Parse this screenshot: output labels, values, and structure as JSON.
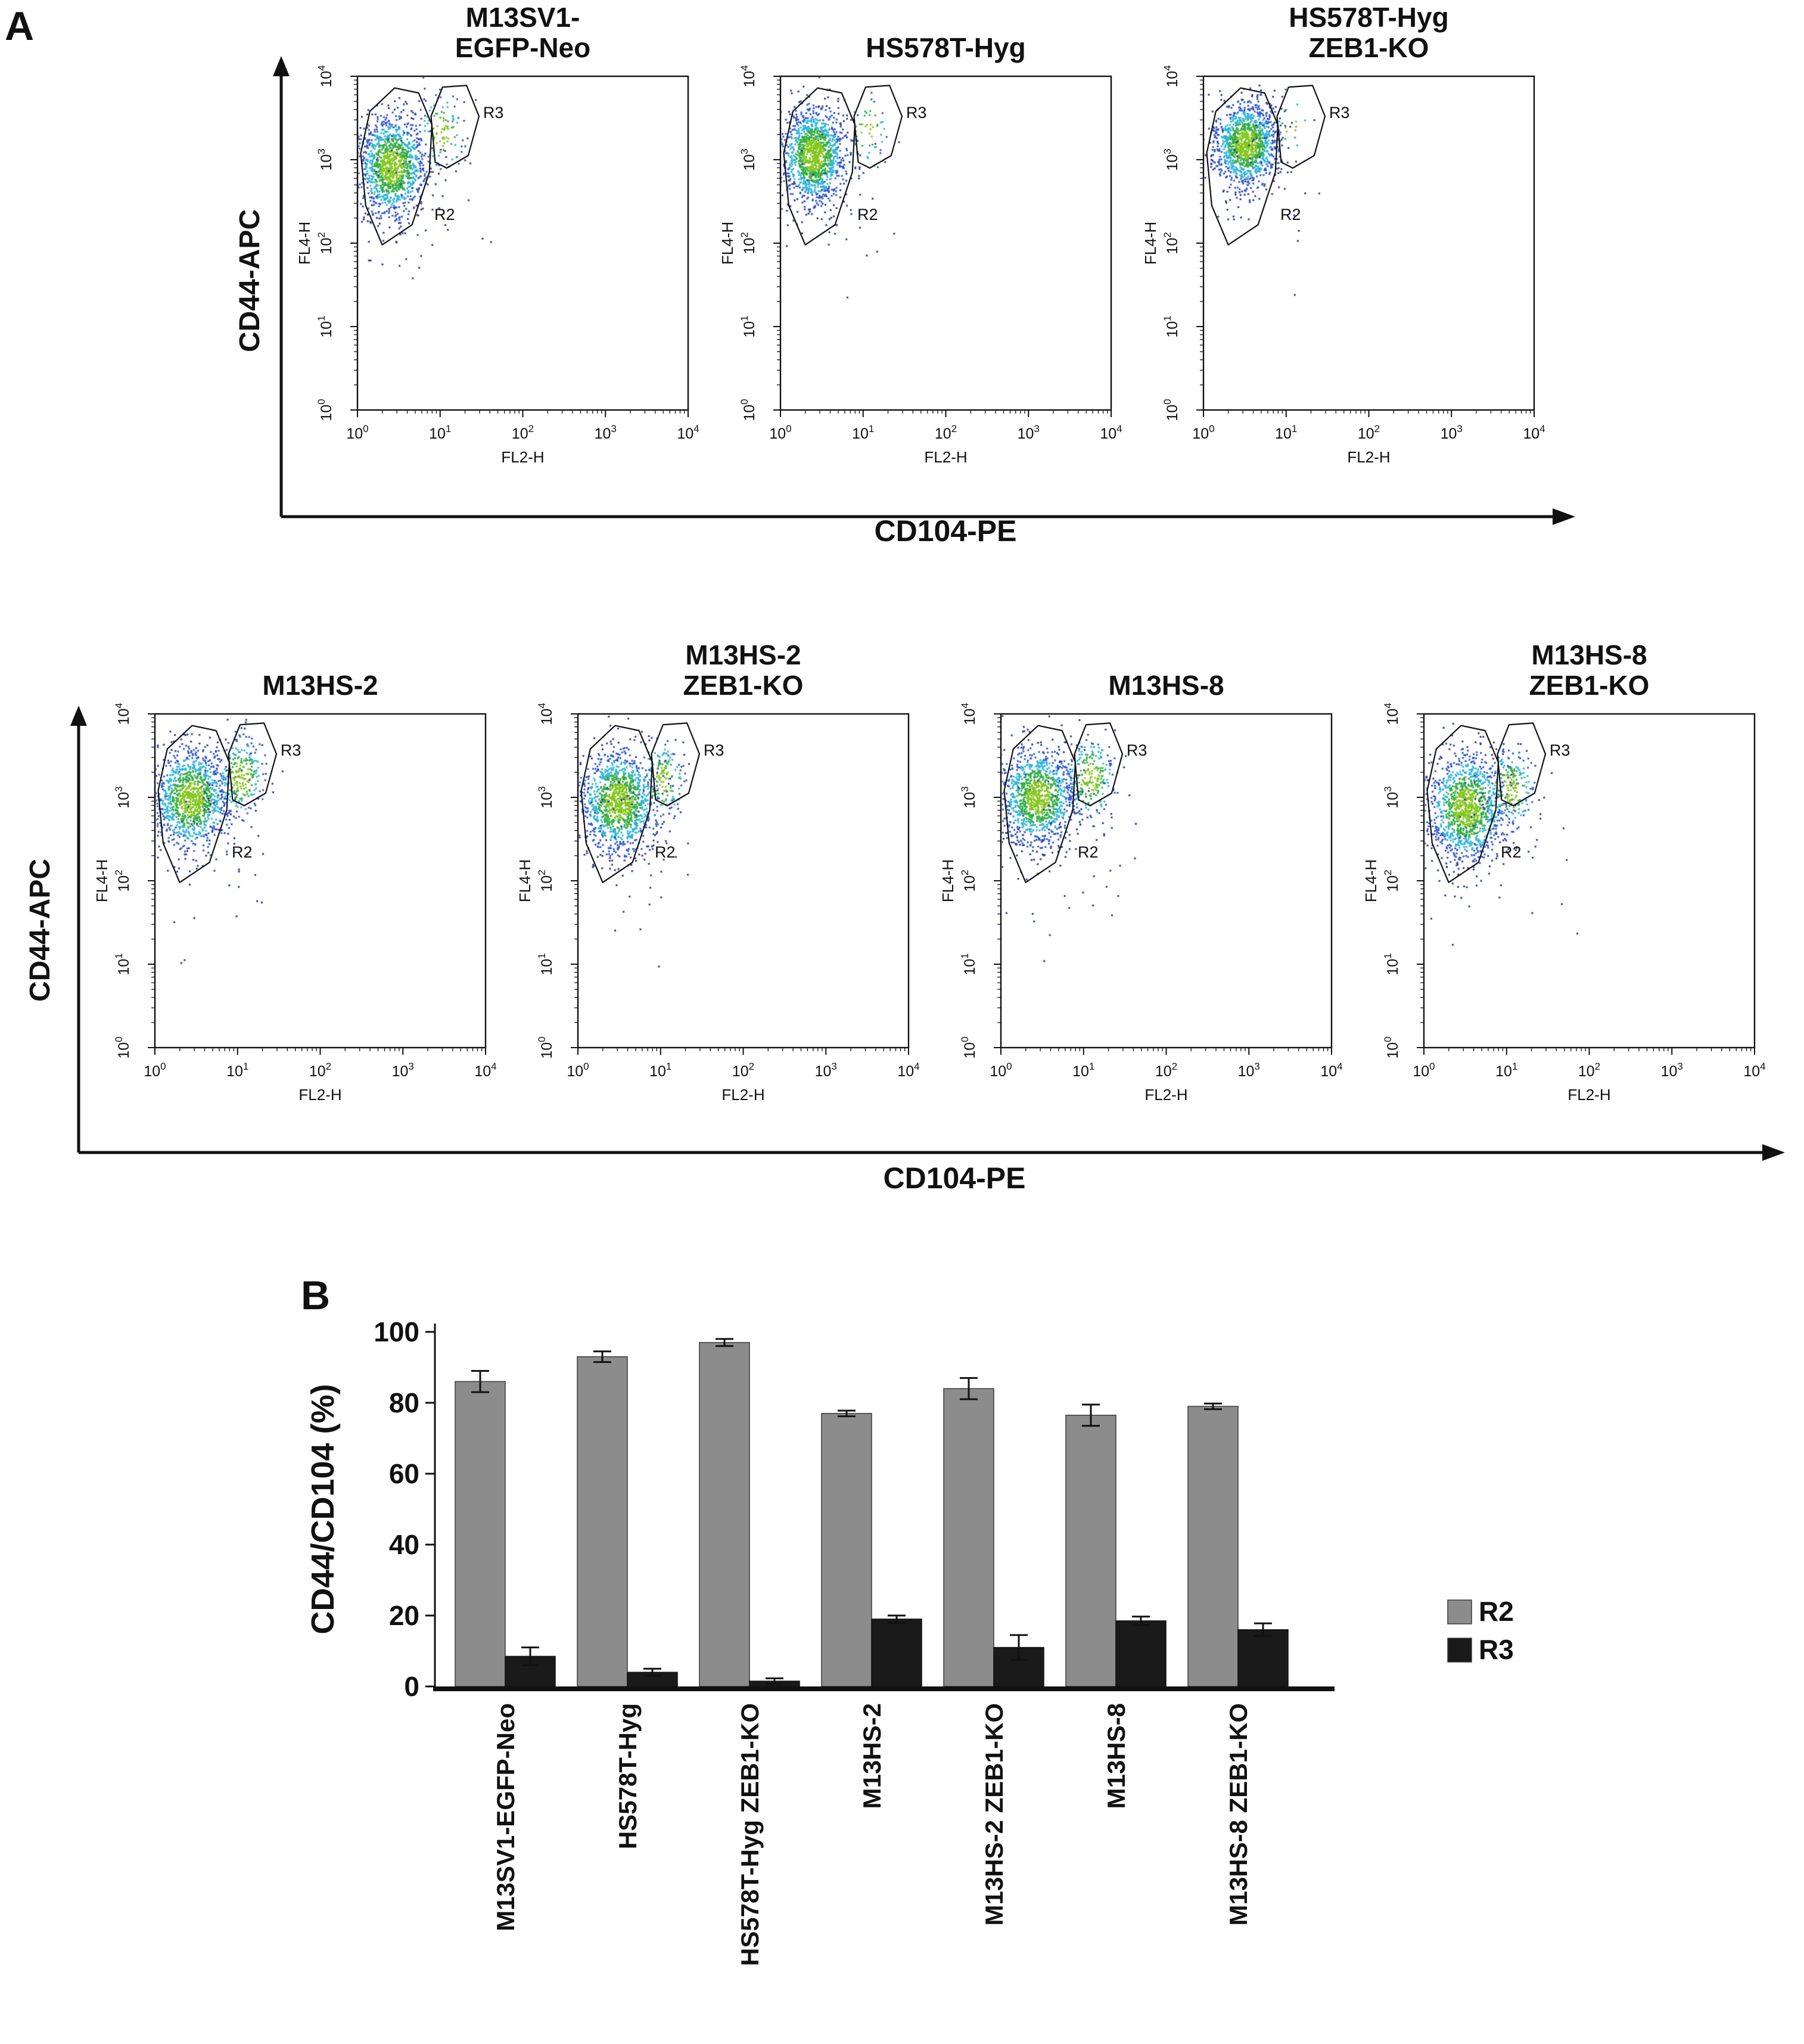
{
  "page": {
    "background": "#ffffff"
  },
  "panel_a": {
    "label": "A",
    "axis_x_label": "CD104-PE",
    "axis_y_label": "CD44-APC",
    "rows": [
      {
        "plots": [
          {
            "title": "M13SV1-\nEGFP-Neo"
          },
          {
            "title": "HS578T-Hyg"
          },
          {
            "title": "HS578T-Hyg\nZEB1-KO"
          }
        ]
      },
      {
        "plots": [
          {
            "title": "M13HS-2"
          },
          {
            "title": "M13HS-2\nZEB1-KO"
          },
          {
            "title": "M13HS-8"
          },
          {
            "title": "M13HS-8\nZEB1-KO"
          }
        ]
      }
    ]
  },
  "panel_b": {
    "label": "B"
  },
  "chart_data": [
    {
      "type": "bar",
      "title": "",
      "xlabel": "",
      "ylabel": "CD44/CD104 (%)",
      "ylim": [
        0,
        100
      ],
      "yticks": [
        0,
        20,
        40,
        60,
        80,
        100
      ],
      "grid": false,
      "legend_position": "right",
      "categories": [
        "M13SV1-EGFP-Neo",
        "HS578T-Hyg",
        "HS578T-Hyg ZEB1-KO",
        "M13HS-2",
        "M13HS-2 ZEB1-KO",
        "M13HS-8",
        "M13HS-8 ZEB1-KO"
      ],
      "series": [
        {
          "name": "R2",
          "color": "#8c8c8c",
          "values": [
            86,
            93,
            97,
            77,
            84,
            76.5,
            79
          ],
          "errors": [
            3,
            1.5,
            1,
            0.8,
            3,
            3,
            0.8
          ]
        },
        {
          "name": "R3",
          "color": "#1a1a1a",
          "values": [
            8.5,
            4,
            1.5,
            19,
            11,
            18.5,
            16
          ],
          "errors": [
            2.5,
            1,
            0.8,
            1,
            3.5,
            1.2,
            1.8
          ]
        }
      ]
    },
    {
      "type": "flow_density_scatter",
      "x_axis": {
        "label": "FL2-H",
        "scale": "log10",
        "range_decades": [
          0,
          4
        ]
      },
      "y_axis": {
        "label": "FL4-H",
        "scale": "log10",
        "range_decades": [
          0,
          4
        ]
      },
      "decade_tick_labels": [
        "10^0",
        "10^1",
        "10^2",
        "10^3",
        "10^4"
      ],
      "density_palette": {
        "outlier": "#2b3a9c",
        "low": "#3056c9",
        "mid": "#2fb4d8",
        "high": "#35ad47",
        "core": "#84c61e"
      },
      "gate_labels": [
        "R2",
        "R3"
      ],
      "gates": {
        "R2": [
          [
            0.3,
            1.98
          ],
          [
            0.1,
            2.45
          ],
          [
            0.04,
            3.08
          ],
          [
            0.15,
            3.58
          ],
          [
            0.45,
            3.86
          ],
          [
            0.74,
            3.8
          ],
          [
            0.9,
            3.42
          ],
          [
            0.87,
            2.85
          ],
          [
            0.66,
            2.22
          ]
        ],
        "R3": [
          [
            0.94,
            2.97
          ],
          [
            0.89,
            3.52
          ],
          [
            1.03,
            3.87
          ],
          [
            1.32,
            3.89
          ],
          [
            1.47,
            3.52
          ],
          [
            1.34,
            3.05
          ],
          [
            1.08,
            2.9
          ]
        ],
        "R2_label_pos": [
          0.93,
          2.28
        ],
        "R3_label_pos": [
          1.52,
          3.5
        ]
      },
      "plots": [
        {
          "sample": "M13SV1-EGFP-Neo",
          "seed": 101,
          "r2_pct": 86,
          "r3_pct": 8.5,
          "populations": [
            {
              "kind": "main",
              "cx": 0.42,
              "cy": 2.92,
              "sx": 0.2,
              "sy": 0.3,
              "n": 1250
            },
            {
              "kind": "r3",
              "cx": 1.02,
              "cy": 3.32,
              "sx": 0.14,
              "sy": 0.24,
              "n": 110
            },
            {
              "kind": "scatter",
              "cx": 0.55,
              "cy": 2.65,
              "sx": 0.45,
              "sy": 0.6,
              "n": 70
            }
          ]
        },
        {
          "sample": "HS578T-Hyg",
          "seed": 102,
          "r2_pct": 93,
          "r3_pct": 4,
          "populations": [
            {
              "kind": "main",
              "cx": 0.4,
              "cy": 3.05,
              "sx": 0.19,
              "sy": 0.28,
              "n": 1300
            },
            {
              "kind": "r3",
              "cx": 1.05,
              "cy": 3.35,
              "sx": 0.13,
              "sy": 0.22,
              "n": 55
            },
            {
              "kind": "scatter",
              "cx": 0.5,
              "cy": 2.75,
              "sx": 0.42,
              "sy": 0.55,
              "n": 60
            }
          ]
        },
        {
          "sample": "HS578T-Hyg ZEB1-KO",
          "seed": 103,
          "r2_pct": 97,
          "r3_pct": 1.5,
          "populations": [
            {
              "kind": "main",
              "cx": 0.52,
              "cy": 3.18,
              "sx": 0.19,
              "sy": 0.25,
              "n": 1300
            },
            {
              "kind": "r3",
              "cx": 1.06,
              "cy": 3.42,
              "sx": 0.12,
              "sy": 0.2,
              "n": 18
            },
            {
              "kind": "scatter",
              "cx": 0.6,
              "cy": 2.85,
              "sx": 0.4,
              "sy": 0.5,
              "n": 50
            }
          ]
        },
        {
          "sample": "M13HS-2",
          "seed": 104,
          "r2_pct": 77,
          "r3_pct": 19,
          "populations": [
            {
              "kind": "main",
              "cx": 0.44,
              "cy": 2.98,
              "sx": 0.22,
              "sy": 0.3,
              "n": 1150
            },
            {
              "kind": "r3",
              "cx": 1.04,
              "cy": 3.25,
              "sx": 0.15,
              "sy": 0.25,
              "n": 270
            },
            {
              "kind": "scatter",
              "cx": 0.6,
              "cy": 2.6,
              "sx": 0.5,
              "sy": 0.6,
              "n": 70
            }
          ]
        },
        {
          "sample": "M13HS-2 ZEB1-KO",
          "seed": 105,
          "r2_pct": 84,
          "r3_pct": 11,
          "populations": [
            {
              "kind": "main",
              "cx": 0.5,
              "cy": 2.95,
              "sx": 0.23,
              "sy": 0.3,
              "n": 1250
            },
            {
              "kind": "r3",
              "cx": 1.02,
              "cy": 3.2,
              "sx": 0.14,
              "sy": 0.24,
              "n": 150
            },
            {
              "kind": "scatter",
              "cx": 0.6,
              "cy": 2.6,
              "sx": 0.48,
              "sy": 0.58,
              "n": 70
            }
          ]
        },
        {
          "sample": "M13HS-8",
          "seed": 106,
          "r2_pct": 76.5,
          "r3_pct": 18.5,
          "populations": [
            {
              "kind": "main",
              "cx": 0.45,
              "cy": 3.0,
              "sx": 0.22,
              "sy": 0.28,
              "n": 1150
            },
            {
              "kind": "r3",
              "cx": 1.08,
              "cy": 3.22,
              "sx": 0.16,
              "sy": 0.26,
              "n": 260
            },
            {
              "kind": "scatter",
              "cx": 0.6,
              "cy": 2.62,
              "sx": 0.5,
              "sy": 0.6,
              "n": 75
            }
          ]
        },
        {
          "sample": "M13HS-8 ZEB1-KO",
          "seed": 107,
          "r2_pct": 79,
          "r3_pct": 16,
          "populations": [
            {
              "kind": "main",
              "cx": 0.52,
              "cy": 2.88,
              "sx": 0.23,
              "sy": 0.32,
              "n": 1250
            },
            {
              "kind": "r3",
              "cx": 1.04,
              "cy": 3.1,
              "sx": 0.15,
              "sy": 0.24,
              "n": 210
            },
            {
              "kind": "scatter",
              "cx": 0.6,
              "cy": 2.58,
              "sx": 0.48,
              "sy": 0.58,
              "n": 70
            }
          ]
        }
      ]
    }
  ]
}
